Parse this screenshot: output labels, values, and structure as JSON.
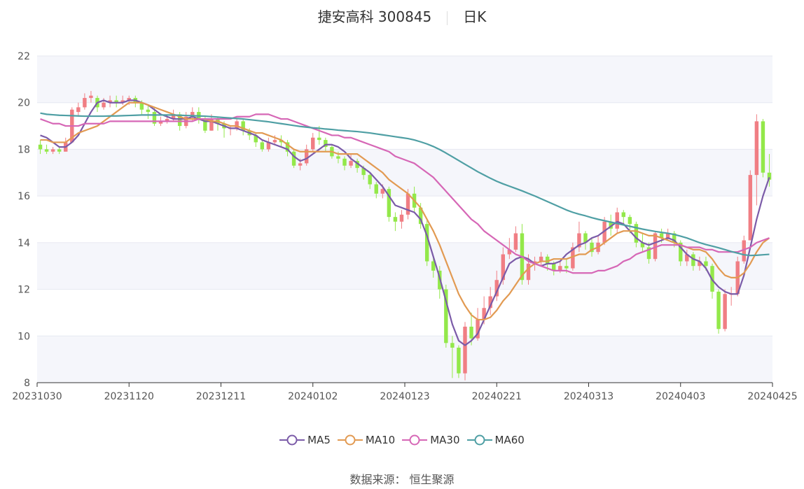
{
  "header": {
    "stock_name": "捷安高科 300845",
    "period": "日K"
  },
  "source_label": "数据来源：  恒生聚源",
  "colors": {
    "up": "#f07e84",
    "down": "#93e84a",
    "ma5": "#7b5ba8",
    "ma10": "#e29a52",
    "ma30": "#d667b6",
    "ma60": "#4f9fa4",
    "band": "#f3f4fa",
    "grid": "#e6e8f1"
  },
  "chart_data": {
    "type": "candlestick",
    "ylim": [
      8,
      22
    ],
    "yticks": [
      8,
      10,
      12,
      14,
      16,
      18,
      20,
      22
    ],
    "xtick_labels": [
      "20231030",
      "20231120",
      "20231211",
      "20240102",
      "20240123",
      "20240221",
      "20240313",
      "20240403",
      "20240425"
    ],
    "candles": [
      [
        18.2,
        18.0,
        18.4,
        17.8
      ],
      [
        18.0,
        17.9,
        18.2,
        17.8
      ],
      [
        17.9,
        18.0,
        18.1,
        17.8
      ],
      [
        18.0,
        17.9,
        18.1,
        17.8
      ],
      [
        17.9,
        18.3,
        18.5,
        17.9
      ],
      [
        18.3,
        19.7,
        19.8,
        18.3
      ],
      [
        19.6,
        19.8,
        20.0,
        19.4
      ],
      [
        19.8,
        20.2,
        20.4,
        19.7
      ],
      [
        20.2,
        20.3,
        20.5,
        20.0
      ],
      [
        20.2,
        19.8,
        20.3,
        19.6
      ],
      [
        19.8,
        20.0,
        20.2,
        19.7
      ],
      [
        20.0,
        20.1,
        20.3,
        19.8
      ],
      [
        20.1,
        20.0,
        20.3,
        19.8
      ],
      [
        20.0,
        20.1,
        20.3,
        19.9
      ],
      [
        20.1,
        20.2,
        20.3,
        19.9
      ],
      [
        20.2,
        20.0,
        20.3,
        19.8
      ],
      [
        20.0,
        19.7,
        20.1,
        19.5
      ],
      [
        19.7,
        19.6,
        19.9,
        19.3
      ],
      [
        19.6,
        19.1,
        19.8,
        19.0
      ],
      [
        19.1,
        19.2,
        19.4,
        19.0
      ],
      [
        19.2,
        19.3,
        19.5,
        19.1
      ],
      [
        19.3,
        19.5,
        19.7,
        19.2
      ],
      [
        19.5,
        19.0,
        19.6,
        18.8
      ],
      [
        19.0,
        19.4,
        19.6,
        18.9
      ],
      [
        19.4,
        19.6,
        19.8,
        19.2
      ],
      [
        19.6,
        19.3,
        19.8,
        19.1
      ],
      [
        19.3,
        18.8,
        19.4,
        18.7
      ],
      [
        18.8,
        19.3,
        19.5,
        18.8
      ],
      [
        19.3,
        19.1,
        19.4,
        18.8
      ],
      [
        19.1,
        18.9,
        19.2,
        18.5
      ],
      [
        18.9,
        18.9,
        19.0,
        18.6
      ],
      [
        18.9,
        19.2,
        19.3,
        18.8
      ],
      [
        19.2,
        18.8,
        19.3,
        18.6
      ],
      [
        18.8,
        18.6,
        18.9,
        18.4
      ],
      [
        18.6,
        18.3,
        18.7,
        18.1
      ],
      [
        18.3,
        18.0,
        18.4,
        17.9
      ],
      [
        18.0,
        18.3,
        18.5,
        17.9
      ],
      [
        18.3,
        18.4,
        18.6,
        18.2
      ],
      [
        18.4,
        18.3,
        18.6,
        18.1
      ],
      [
        18.3,
        17.9,
        18.4,
        17.7
      ],
      [
        17.9,
        17.3,
        18.0,
        17.2
      ],
      [
        17.3,
        17.4,
        17.6,
        17.1
      ],
      [
        17.4,
        18.0,
        18.2,
        17.3
      ],
      [
        18.0,
        18.5,
        18.7,
        17.9
      ],
      [
        18.5,
        18.4,
        19.0,
        18.2
      ],
      [
        18.4,
        18.1,
        18.5,
        17.9
      ],
      [
        18.1,
        17.7,
        18.2,
        17.6
      ],
      [
        17.7,
        17.6,
        17.9,
        17.4
      ],
      [
        17.6,
        17.3,
        17.7,
        17.1
      ],
      [
        17.3,
        17.5,
        17.8,
        17.2
      ],
      [
        17.5,
        17.2,
        17.6,
        17.0
      ],
      [
        17.2,
        16.9,
        17.3,
        16.7
      ],
      [
        16.9,
        16.5,
        17.0,
        16.3
      ],
      [
        16.5,
        16.1,
        16.6,
        15.9
      ],
      [
        16.1,
        16.3,
        16.5,
        15.9
      ],
      [
        16.3,
        15.1,
        16.4,
        14.9
      ],
      [
        15.1,
        14.9,
        15.3,
        14.5
      ],
      [
        14.9,
        15.2,
        15.4,
        14.6
      ],
      [
        15.2,
        16.1,
        16.3,
        15.0
      ],
      [
        16.1,
        15.5,
        16.4,
        15.3
      ],
      [
        15.5,
        14.8,
        15.7,
        14.6
      ],
      [
        14.8,
        13.2,
        15.0,
        13.0
      ],
      [
        13.2,
        12.8,
        13.4,
        12.5
      ],
      [
        12.8,
        12.0,
        13.0,
        11.6
      ],
      [
        12.0,
        9.7,
        12.2,
        9.5
      ],
      [
        9.7,
        9.5,
        10.0,
        8.2
      ],
      [
        9.5,
        8.4,
        9.6,
        8.2
      ],
      [
        8.4,
        10.4,
        10.6,
        8.1
      ],
      [
        10.4,
        9.9,
        11.0,
        9.6
      ],
      [
        9.9,
        10.7,
        11.2,
        9.8
      ],
      [
        10.7,
        11.2,
        11.7,
        10.5
      ],
      [
        11.2,
        11.7,
        12.1,
        10.9
      ],
      [
        11.7,
        12.4,
        12.8,
        11.5
      ],
      [
        12.4,
        13.5,
        13.8,
        12.2
      ],
      [
        13.5,
        13.7,
        14.2,
        13.3
      ],
      [
        13.7,
        14.4,
        14.7,
        13.6
      ],
      [
        14.4,
        12.4,
        14.8,
        12.2
      ],
      [
        12.4,
        13.1,
        13.5,
        12.2
      ],
      [
        13.1,
        13.2,
        13.4,
        12.8
      ],
      [
        13.2,
        13.4,
        13.6,
        13.0
      ],
      [
        13.4,
        13.1,
        13.5,
        12.8
      ],
      [
        13.1,
        12.8,
        13.2,
        12.6
      ],
      [
        12.8,
        13.0,
        13.2,
        12.7
      ],
      [
        13.0,
        12.9,
        13.3,
        12.7
      ],
      [
        12.9,
        13.8,
        14.0,
        12.8
      ],
      [
        13.8,
        14.4,
        14.9,
        13.6
      ],
      [
        14.4,
        14.0,
        14.5,
        13.7
      ],
      [
        14.0,
        13.6,
        14.2,
        13.4
      ],
      [
        13.6,
        14.0,
        14.3,
        13.5
      ],
      [
        14.0,
        14.9,
        15.1,
        13.9
      ],
      [
        14.9,
        14.6,
        15.2,
        14.3
      ],
      [
        14.6,
        15.3,
        15.5,
        14.4
      ],
      [
        15.3,
        15.1,
        15.4,
        14.8
      ],
      [
        15.1,
        14.8,
        15.2,
        14.4
      ],
      [
        14.8,
        14.0,
        14.9,
        13.8
      ],
      [
        14.0,
        13.8,
        14.4,
        13.6
      ],
      [
        13.8,
        13.3,
        14.0,
        13.1
      ],
      [
        13.3,
        14.4,
        14.5,
        13.2
      ],
      [
        14.4,
        14.2,
        14.6,
        14.0
      ],
      [
        14.2,
        14.4,
        14.6,
        14.1
      ],
      [
        14.4,
        14.0,
        14.5,
        13.8
      ],
      [
        14.0,
        13.2,
        14.1,
        13.0
      ],
      [
        13.2,
        13.5,
        13.7,
        13.0
      ],
      [
        13.5,
        13.0,
        13.6,
        12.8
      ],
      [
        13.0,
        13.2,
        13.4,
        12.8
      ],
      [
        13.2,
        13.0,
        13.4,
        12.8
      ],
      [
        13.0,
        11.9,
        13.1,
        11.6
      ],
      [
        11.9,
        10.3,
        12.0,
        10.1
      ],
      [
        10.3,
        11.8,
        12.0,
        10.2
      ],
      [
        11.8,
        11.8,
        12.1,
        11.3
      ],
      [
        11.8,
        13.2,
        13.4,
        11.7
      ],
      [
        13.2,
        14.1,
        14.3,
        13.1
      ],
      [
        14.1,
        16.9,
        17.1,
        15.6
      ],
      [
        16.9,
        19.2,
        19.5,
        15.6
      ],
      [
        19.2,
        17.0,
        19.3,
        16.8
      ],
      [
        17.0,
        16.7,
        17.8,
        16.4
      ]
    ],
    "series": [
      {
        "name": "MA5",
        "values": [
          18.6,
          18.5,
          18.3,
          18.1,
          18.1,
          18.3,
          18.6,
          19.1,
          19.6,
          20.0,
          20.1,
          20.0,
          20.0,
          20.0,
          20.1,
          20.1,
          20.0,
          19.9,
          19.7,
          19.5,
          19.4,
          19.3,
          19.3,
          19.3,
          19.4,
          19.3,
          19.2,
          19.2,
          19.1,
          19.0,
          18.9,
          18.9,
          18.8,
          18.7,
          18.6,
          18.4,
          18.3,
          18.2,
          18.1,
          18.0,
          17.7,
          17.5,
          17.6,
          17.8,
          18.0,
          18.2,
          18.2,
          18.1,
          17.9,
          17.6,
          17.4,
          17.2,
          17.0,
          16.7,
          16.4,
          16.0,
          15.6,
          15.5,
          15.4,
          15.3,
          15.0,
          14.3,
          13.4,
          12.5,
          11.5,
          10.5,
          9.8,
          9.6,
          9.8,
          10.1,
          10.7,
          11.3,
          11.9,
          12.5,
          13.1,
          13.3,
          13.4,
          13.3,
          13.1,
          13.0,
          13.1,
          13.1,
          13.2,
          13.5,
          13.7,
          13.9,
          14.0,
          14.2,
          14.3,
          14.5,
          14.7,
          14.9,
          14.8,
          14.5,
          14.2,
          14.0,
          13.9,
          14.0,
          14.1,
          14.2,
          14.1,
          13.8,
          13.5,
          13.3,
          13.2,
          12.9,
          12.4,
          12.1,
          11.9,
          11.8,
          11.8,
          12.6,
          13.8,
          15.0,
          16.0,
          16.8
        ]
      },
      {
        "name": "MA10",
        "values": [
          18.4,
          18.4,
          18.3,
          18.3,
          18.3,
          18.5,
          18.7,
          18.8,
          18.9,
          19.0,
          19.2,
          19.4,
          19.6,
          19.8,
          20.0,
          20.0,
          20.0,
          19.9,
          19.8,
          19.7,
          19.6,
          19.5,
          19.4,
          19.3,
          19.3,
          19.3,
          19.3,
          19.2,
          19.2,
          19.1,
          19.0,
          19.0,
          18.9,
          18.8,
          18.7,
          18.7,
          18.6,
          18.5,
          18.4,
          18.2,
          18.0,
          17.9,
          17.9,
          17.9,
          17.9,
          17.9,
          17.9,
          17.8,
          17.8,
          17.8,
          17.8,
          17.6,
          17.4,
          17.2,
          17.0,
          16.7,
          16.5,
          16.3,
          16.1,
          15.8,
          15.5,
          15.0,
          14.5,
          13.9,
          13.2,
          12.5,
          11.8,
          11.3,
          10.9,
          10.7,
          10.7,
          10.8,
          11.1,
          11.5,
          11.8,
          12.2,
          12.6,
          12.9,
          13.1,
          13.2,
          13.2,
          13.3,
          13.3,
          13.3,
          13.4,
          13.5,
          13.5,
          13.7,
          13.8,
          14.0,
          14.2,
          14.4,
          14.5,
          14.5,
          14.5,
          14.4,
          14.3,
          14.3,
          14.2,
          14.1,
          14.0,
          13.9,
          13.8,
          13.7,
          13.7,
          13.6,
          13.3,
          12.9,
          12.6,
          12.5,
          12.5,
          12.7,
          13.1,
          13.6,
          14.0,
          14.2
        ]
      },
      {
        "name": "MA30",
        "values": [
          19.3,
          19.2,
          19.1,
          19.1,
          19.0,
          19.0,
          19.0,
          19.1,
          19.1,
          19.1,
          19.1,
          19.2,
          19.2,
          19.2,
          19.2,
          19.2,
          19.2,
          19.2,
          19.2,
          19.2,
          19.2,
          19.2,
          19.2,
          19.2,
          19.2,
          19.3,
          19.3,
          19.3,
          19.3,
          19.3,
          19.3,
          19.4,
          19.4,
          19.4,
          19.5,
          19.5,
          19.5,
          19.4,
          19.3,
          19.3,
          19.2,
          19.1,
          19.0,
          18.9,
          18.8,
          18.7,
          18.6,
          18.6,
          18.5,
          18.5,
          18.4,
          18.3,
          18.2,
          18.1,
          18.0,
          17.9,
          17.7,
          17.6,
          17.5,
          17.4,
          17.2,
          17.0,
          16.8,
          16.5,
          16.2,
          15.9,
          15.6,
          15.3,
          15.0,
          14.8,
          14.5,
          14.3,
          14.1,
          13.9,
          13.7,
          13.5,
          13.4,
          13.2,
          13.1,
          13.0,
          12.9,
          12.8,
          12.8,
          12.8,
          12.7,
          12.7,
          12.7,
          12.7,
          12.8,
          12.8,
          12.9,
          13.0,
          13.2,
          13.3,
          13.5,
          13.6,
          13.7,
          13.8,
          13.9,
          13.9,
          13.9,
          13.9,
          13.8,
          13.8,
          13.8,
          13.7,
          13.7,
          13.6,
          13.6,
          13.6,
          13.6,
          13.7,
          13.8,
          14.0,
          14.1,
          14.2
        ]
      },
      {
        "name": "MA60",
        "values": [
          19.55,
          19.5,
          19.48,
          19.46,
          19.45,
          19.44,
          19.43,
          19.42,
          19.42,
          19.42,
          19.42,
          19.43,
          19.43,
          19.44,
          19.45,
          19.46,
          19.47,
          19.47,
          19.47,
          19.47,
          19.47,
          19.47,
          19.46,
          19.45,
          19.44,
          19.43,
          19.42,
          19.4,
          19.38,
          19.36,
          19.34,
          19.32,
          19.3,
          19.27,
          19.24,
          19.21,
          19.18,
          19.14,
          19.1,
          19.06,
          19.02,
          18.98,
          18.95,
          18.92,
          18.9,
          18.87,
          18.85,
          18.82,
          18.8,
          18.78,
          18.76,
          18.73,
          18.7,
          18.66,
          18.62,
          18.58,
          18.54,
          18.5,
          18.46,
          18.4,
          18.32,
          18.23,
          18.12,
          17.99,
          17.84,
          17.68,
          17.52,
          17.36,
          17.2,
          17.04,
          16.9,
          16.76,
          16.63,
          16.52,
          16.42,
          16.32,
          16.22,
          16.11,
          16.0,
          15.88,
          15.76,
          15.64,
          15.52,
          15.4,
          15.3,
          15.22,
          15.15,
          15.07,
          15.0,
          14.94,
          14.88,
          14.82,
          14.76,
          14.7,
          14.64,
          14.58,
          14.53,
          14.48,
          14.44,
          14.4,
          14.35,
          14.28,
          14.2,
          14.1,
          14.0,
          13.92,
          13.85,
          13.78,
          13.7,
          13.62,
          13.55,
          13.48,
          13.45,
          13.46,
          13.48,
          13.5
        ]
      }
    ]
  }
}
